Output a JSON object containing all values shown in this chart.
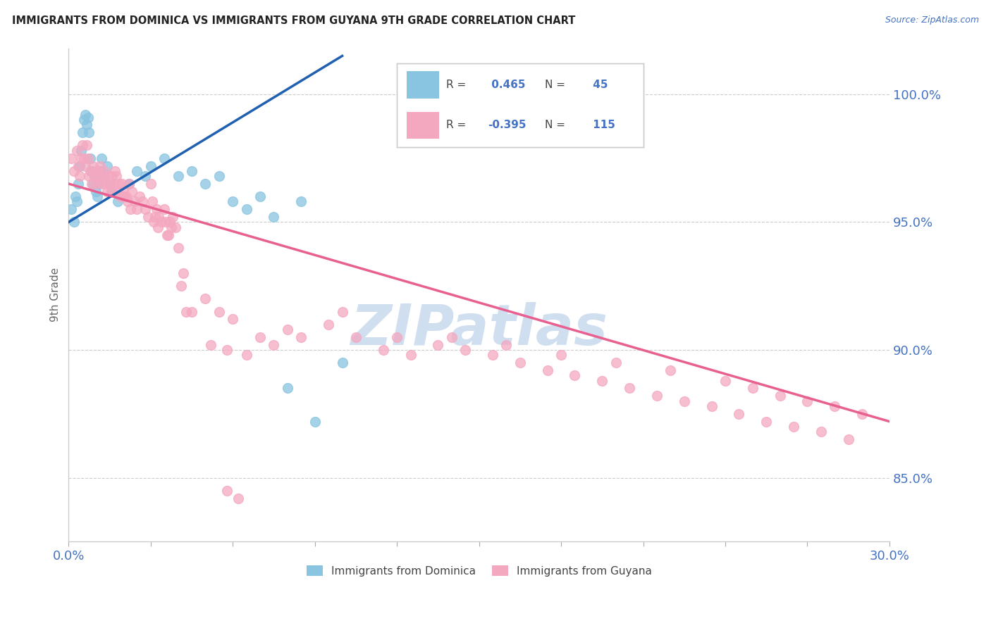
{
  "title": "IMMIGRANTS FROM DOMINICA VS IMMIGRANTS FROM GUYANA 9TH GRADE CORRELATION CHART",
  "source_text": "Source: ZipAtlas.com",
  "ylabel": "9th Grade",
  "y_ticks": [
    85.0,
    90.0,
    95.0,
    100.0
  ],
  "y_tick_labels": [
    "85.0%",
    "90.0%",
    "95.0%",
    "100.0%"
  ],
  "x_min": 0.0,
  "x_max": 30.0,
  "y_min": 82.5,
  "y_max": 101.8,
  "dominica_color": "#89c4e1",
  "guyana_color": "#f4a8c0",
  "dominica_line_color": "#2060b0",
  "guyana_line_color": "#e86090",
  "dominica_R": 0.465,
  "dominica_N": 45,
  "guyana_R": -0.395,
  "guyana_N": 115,
  "watermark_text": "ZIPatlas",
  "watermark_color": "#d0dff0",
  "legend_R_color": "#444444",
  "legend_N_color": "#4472c4",
  "dominica_x": [
    0.1,
    0.2,
    0.25,
    0.3,
    0.35,
    0.4,
    0.45,
    0.5,
    0.55,
    0.6,
    0.65,
    0.7,
    0.75,
    0.8,
    0.85,
    0.9,
    0.95,
    1.0,
    1.05,
    1.1,
    1.15,
    1.2,
    1.3,
    1.4,
    1.5,
    1.6,
    1.8,
    2.0,
    2.2,
    2.5,
    2.8,
    3.0,
    3.5,
    4.0,
    4.5,
    5.0,
    5.5,
    6.0,
    6.5,
    7.0,
    7.5,
    8.0,
    8.5,
    9.0,
    10.0
  ],
  "dominica_y": [
    95.5,
    95.0,
    96.0,
    95.8,
    96.5,
    97.2,
    97.8,
    98.5,
    99.0,
    99.2,
    98.8,
    99.1,
    98.5,
    97.5,
    97.0,
    96.5,
    96.8,
    96.2,
    96.0,
    96.5,
    97.0,
    97.5,
    96.8,
    97.2,
    96.5,
    96.2,
    95.8,
    96.0,
    96.5,
    97.0,
    96.8,
    97.2,
    97.5,
    96.8,
    97.0,
    96.5,
    96.8,
    95.8,
    95.5,
    96.0,
    95.2,
    88.5,
    95.8,
    87.2,
    89.5
  ],
  "guyana_x": [
    0.1,
    0.2,
    0.3,
    0.35,
    0.4,
    0.45,
    0.5,
    0.55,
    0.6,
    0.65,
    0.7,
    0.75,
    0.8,
    0.85,
    0.9,
    0.95,
    1.0,
    1.05,
    1.1,
    1.15,
    1.2,
    1.25,
    1.3,
    1.35,
    1.4,
    1.45,
    1.5,
    1.55,
    1.6,
    1.65,
    1.7,
    1.75,
    1.8,
    1.85,
    1.9,
    1.95,
    2.0,
    2.1,
    2.2,
    2.3,
    2.4,
    2.5,
    2.6,
    2.7,
    2.8,
    2.9,
    3.0,
    3.1,
    3.2,
    3.3,
    3.4,
    3.5,
    3.6,
    3.7,
    3.8,
    3.9,
    4.0,
    4.2,
    4.5,
    5.0,
    5.5,
    6.0,
    7.0,
    8.0,
    10.0,
    12.0,
    14.0,
    16.0,
    18.0,
    20.0,
    22.0,
    24.0,
    25.0,
    26.0,
    27.0,
    28.0,
    29.0,
    2.05,
    2.15,
    2.25,
    3.05,
    3.15,
    3.25,
    3.55,
    3.65,
    3.75,
    4.1,
    4.3,
    5.2,
    5.8,
    6.5,
    7.5,
    8.5,
    9.5,
    10.5,
    11.5,
    12.5,
    13.5,
    14.5,
    15.5,
    16.5,
    17.5,
    18.5,
    19.5,
    20.5,
    21.5,
    22.5,
    23.5,
    24.5,
    25.5,
    26.5,
    27.5,
    28.5,
    5.8,
    6.2
  ],
  "guyana_y": [
    97.5,
    97.0,
    97.8,
    97.2,
    96.8,
    97.5,
    98.0,
    97.5,
    97.2,
    98.0,
    97.5,
    96.8,
    97.0,
    96.5,
    97.2,
    96.8,
    96.5,
    97.0,
    96.8,
    97.2,
    96.5,
    96.8,
    97.0,
    96.5,
    96.2,
    96.8,
    96.5,
    96.2,
    96.8,
    96.5,
    97.0,
    96.8,
    96.2,
    96.5,
    96.0,
    96.5,
    96.2,
    96.0,
    96.5,
    96.2,
    95.8,
    95.5,
    96.0,
    95.8,
    95.5,
    95.2,
    96.5,
    95.0,
    95.5,
    95.2,
    95.0,
    95.5,
    94.5,
    95.0,
    95.2,
    94.8,
    94.0,
    93.0,
    91.5,
    92.0,
    91.5,
    91.2,
    90.5,
    90.8,
    91.5,
    90.5,
    90.5,
    90.2,
    89.8,
    89.5,
    89.2,
    88.8,
    88.5,
    88.2,
    88.0,
    87.8,
    87.5,
    96.0,
    95.8,
    95.5,
    95.8,
    95.2,
    94.8,
    95.0,
    94.5,
    94.8,
    92.5,
    91.5,
    90.2,
    90.0,
    89.8,
    90.2,
    90.5,
    91.0,
    90.5,
    90.0,
    89.8,
    90.2,
    90.0,
    89.8,
    89.5,
    89.2,
    89.0,
    88.8,
    88.5,
    88.2,
    88.0,
    87.8,
    87.5,
    87.2,
    87.0,
    86.8,
    86.5,
    84.5,
    84.2
  ]
}
